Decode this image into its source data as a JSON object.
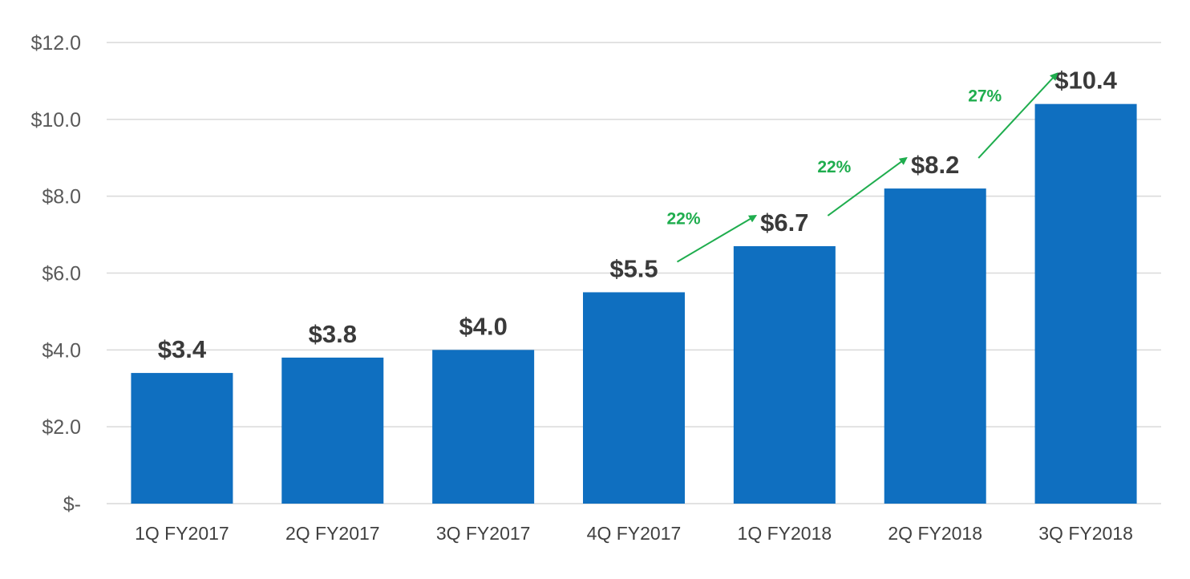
{
  "chart_data": {
    "type": "bar",
    "title": "",
    "xlabel": "",
    "ylabel": "",
    "categories": [
      "1Q FY2017",
      "2Q FY2017",
      "3Q FY2017",
      "4Q FY2017",
      "1Q FY2018",
      "2Q FY2018",
      "3Q FY2018"
    ],
    "values": [
      3.4,
      3.8,
      4.0,
      5.5,
      6.7,
      8.2,
      10.4
    ],
    "data_labels": [
      "$3.4",
      "$3.8",
      "$4.0",
      "$5.5",
      "$6.7",
      "$8.2",
      "$10.4"
    ],
    "ylim": [
      0,
      12
    ],
    "y_ticks": [
      0,
      2,
      4,
      6,
      8,
      10,
      12
    ],
    "y_tick_labels": [
      "$-",
      "$2.0",
      "$4.0",
      "$6.0",
      "$8.0",
      "$10.0",
      "$12.0"
    ],
    "grid": true,
    "legend": "none",
    "annotations": [
      {
        "from_index": 3,
        "to_index": 4,
        "label": "22%"
      },
      {
        "from_index": 4,
        "to_index": 5,
        "label": "22%"
      },
      {
        "from_index": 5,
        "to_index": 6,
        "label": "27%"
      }
    ],
    "colors": {
      "bar": "#0F6FC0",
      "grid": "#D9D9D9",
      "growth": "#1FAD4E"
    }
  }
}
